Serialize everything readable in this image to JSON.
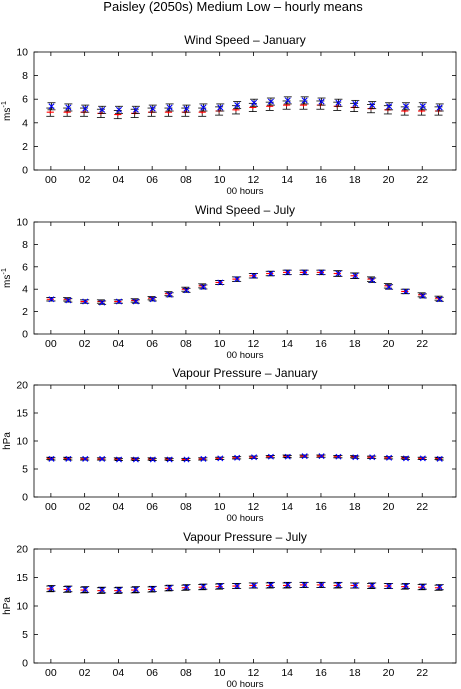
{
  "figure": {
    "title": "Paisley (2050s) Medium Low – hourly means"
  },
  "colors": {
    "series_red": "#ff0000",
    "series_blue": "#0000ff",
    "error_bar": "#000000",
    "axes": "#000000"
  },
  "chart_data": [
    {
      "type": "scatter",
      "title": "Wind Speed – January",
      "xlabel": "00 hours",
      "ylabel": "ms",
      "ylabel_exponent": "-1",
      "x": [
        0,
        1,
        2,
        3,
        4,
        5,
        6,
        7,
        8,
        9,
        10,
        11,
        12,
        13,
        14,
        15,
        16,
        17,
        18,
        19,
        20,
        21,
        22,
        23
      ],
      "xlim": [
        -1,
        24
      ],
      "ylim": [
        0,
        10
      ],
      "xticks": [
        "00",
        "02",
        "04",
        "06",
        "08",
        "10",
        "12",
        "14",
        "16",
        "18",
        "20",
        "22"
      ],
      "yticks": [
        "0",
        "2",
        "4",
        "6",
        "8",
        "10"
      ],
      "grid": false,
      "series": [
        {
          "color": "#ff0000",
          "marker": "cross",
          "values": [
            4.9,
            4.9,
            4.9,
            4.8,
            4.7,
            4.8,
            4.9,
            4.9,
            4.9,
            4.9,
            5.0,
            5.1,
            5.3,
            5.4,
            5.5,
            5.5,
            5.5,
            5.4,
            5.3,
            5.2,
            5.1,
            5.0,
            5.0,
            5.0
          ],
          "error": [
            0.35,
            0.35,
            0.35,
            0.35,
            0.35,
            0.35,
            0.35,
            0.35,
            0.35,
            0.35,
            0.35,
            0.35,
            0.35,
            0.35,
            0.35,
            0.35,
            0.35,
            0.35,
            0.35,
            0.35,
            0.35,
            0.35,
            0.35,
            0.35
          ]
        },
        {
          "color": "#0000ff",
          "marker": "x",
          "values": [
            5.4,
            5.3,
            5.2,
            5.1,
            5.1,
            5.1,
            5.2,
            5.3,
            5.2,
            5.3,
            5.3,
            5.5,
            5.7,
            5.8,
            5.9,
            5.9,
            5.8,
            5.7,
            5.6,
            5.5,
            5.4,
            5.4,
            5.4,
            5.3
          ],
          "error": [
            0.3,
            0.3,
            0.3,
            0.3,
            0.3,
            0.3,
            0.3,
            0.3,
            0.3,
            0.3,
            0.3,
            0.3,
            0.3,
            0.3,
            0.3,
            0.3,
            0.3,
            0.3,
            0.3,
            0.3,
            0.3,
            0.3,
            0.3,
            0.3
          ]
        }
      ]
    },
    {
      "type": "scatter",
      "title": "Wind Speed – July",
      "xlabel": "00 hours",
      "ylabel": "ms",
      "ylabel_exponent": "-1",
      "x": [
        0,
        1,
        2,
        3,
        4,
        5,
        6,
        7,
        8,
        9,
        10,
        11,
        12,
        13,
        14,
        15,
        16,
        17,
        18,
        19,
        20,
        21,
        22,
        23
      ],
      "xlim": [
        -1,
        24
      ],
      "ylim": [
        0,
        10
      ],
      "xticks": [
        "00",
        "02",
        "04",
        "06",
        "08",
        "10",
        "12",
        "14",
        "16",
        "18",
        "20",
        "22"
      ],
      "yticks": [
        "0",
        "2",
        "4",
        "6",
        "8",
        "10"
      ],
      "grid": false,
      "series": [
        {
          "color": "#ff0000",
          "marker": "cross",
          "values": [
            3.1,
            3.1,
            2.9,
            2.9,
            2.9,
            3.0,
            3.2,
            3.6,
            4.0,
            4.3,
            4.6,
            4.9,
            5.2,
            5.4,
            5.5,
            5.5,
            5.5,
            5.4,
            5.2,
            4.9,
            4.3,
            3.8,
            3.5,
            3.2
          ],
          "error": [
            0.15,
            0.15,
            0.15,
            0.15,
            0.15,
            0.15,
            0.15,
            0.18,
            0.18,
            0.18,
            0.18,
            0.2,
            0.2,
            0.2,
            0.2,
            0.2,
            0.2,
            0.25,
            0.25,
            0.2,
            0.2,
            0.2,
            0.18,
            0.18
          ]
        },
        {
          "color": "#0000ff",
          "marker": "x",
          "values": [
            3.1,
            3.0,
            2.9,
            2.8,
            2.9,
            2.9,
            3.1,
            3.5,
            3.9,
            4.2,
            4.6,
            4.9,
            5.2,
            5.4,
            5.5,
            5.5,
            5.5,
            5.4,
            5.2,
            4.8,
            4.2,
            3.8,
            3.4,
            3.1
          ],
          "error": [
            0.15,
            0.15,
            0.15,
            0.15,
            0.15,
            0.15,
            0.15,
            0.18,
            0.18,
            0.18,
            0.18,
            0.2,
            0.2,
            0.2,
            0.2,
            0.2,
            0.2,
            0.25,
            0.25,
            0.2,
            0.2,
            0.2,
            0.18,
            0.18
          ]
        }
      ]
    },
    {
      "type": "scatter",
      "title": "Vapour Pressure – January",
      "xlabel": "00 hours",
      "ylabel": "hPa",
      "x": [
        0,
        1,
        2,
        3,
        4,
        5,
        6,
        7,
        8,
        9,
        10,
        11,
        12,
        13,
        14,
        15,
        16,
        17,
        18,
        19,
        20,
        21,
        22,
        23
      ],
      "xlim": [
        -1,
        24
      ],
      "ylim": [
        0,
        20
      ],
      "xticks": [
        "00",
        "02",
        "04",
        "06",
        "08",
        "10",
        "12",
        "14",
        "16",
        "18",
        "20",
        "22"
      ],
      "yticks": [
        "0",
        "5",
        "10",
        "15",
        "20"
      ],
      "grid": false,
      "series": [
        {
          "color": "#ff0000",
          "marker": "cross",
          "values": [
            6.9,
            6.9,
            6.8,
            6.8,
            6.8,
            6.8,
            6.8,
            6.8,
            6.7,
            6.8,
            6.9,
            7.0,
            7.1,
            7.2,
            7.3,
            7.3,
            7.3,
            7.2,
            7.2,
            7.1,
            7.0,
            7.0,
            6.9,
            6.9
          ],
          "error": [
            0.2,
            0.2,
            0.2,
            0.2,
            0.2,
            0.2,
            0.2,
            0.2,
            0.2,
            0.2,
            0.2,
            0.2,
            0.2,
            0.2,
            0.2,
            0.2,
            0.2,
            0.2,
            0.2,
            0.2,
            0.2,
            0.2,
            0.2,
            0.2
          ]
        },
        {
          "color": "#0000ff",
          "marker": "x",
          "values": [
            6.8,
            6.8,
            6.8,
            6.8,
            6.7,
            6.7,
            6.7,
            6.7,
            6.7,
            6.8,
            6.9,
            7.0,
            7.1,
            7.2,
            7.2,
            7.3,
            7.3,
            7.2,
            7.1,
            7.1,
            7.0,
            6.9,
            6.9,
            6.8
          ],
          "error": [
            0.2,
            0.2,
            0.2,
            0.2,
            0.2,
            0.2,
            0.2,
            0.2,
            0.2,
            0.2,
            0.2,
            0.2,
            0.2,
            0.2,
            0.2,
            0.2,
            0.2,
            0.2,
            0.2,
            0.2,
            0.2,
            0.2,
            0.2,
            0.2
          ]
        }
      ]
    },
    {
      "type": "scatter",
      "title": "Vapour Pressure – July",
      "xlabel": "00 hours",
      "ylabel": "hPa",
      "x": [
        0,
        1,
        2,
        3,
        4,
        5,
        6,
        7,
        8,
        9,
        10,
        11,
        12,
        13,
        14,
        15,
        16,
        17,
        18,
        19,
        20,
        21,
        22,
        23
      ],
      "xlim": [
        -1,
        24
      ],
      "ylim": [
        0,
        20
      ],
      "xticks": [
        "00",
        "02",
        "04",
        "06",
        "08",
        "10",
        "12",
        "14",
        "16",
        "18",
        "20",
        "22"
      ],
      "yticks": [
        "0",
        "5",
        "10",
        "15",
        "20"
      ],
      "grid": false,
      "series": [
        {
          "color": "#ff0000",
          "marker": "cross",
          "values": [
            13.0,
            12.9,
            12.8,
            12.7,
            12.7,
            12.8,
            12.9,
            13.1,
            13.2,
            13.3,
            13.4,
            13.5,
            13.6,
            13.6,
            13.6,
            13.7,
            13.7,
            13.6,
            13.6,
            13.5,
            13.5,
            13.4,
            13.3,
            13.2
          ],
          "error": [
            0.5,
            0.5,
            0.5,
            0.5,
            0.5,
            0.5,
            0.45,
            0.45,
            0.45,
            0.45,
            0.45,
            0.45,
            0.45,
            0.45,
            0.45,
            0.45,
            0.45,
            0.45,
            0.45,
            0.45,
            0.45,
            0.45,
            0.45,
            0.45
          ]
        },
        {
          "color": "#0000ff",
          "marker": "x",
          "values": [
            13.1,
            13.0,
            12.9,
            12.8,
            12.8,
            12.9,
            13.0,
            13.2,
            13.3,
            13.4,
            13.5,
            13.5,
            13.6,
            13.7,
            13.7,
            13.7,
            13.7,
            13.7,
            13.6,
            13.6,
            13.5,
            13.5,
            13.4,
            13.3
          ],
          "error": [
            0.5,
            0.5,
            0.5,
            0.5,
            0.5,
            0.5,
            0.45,
            0.45,
            0.45,
            0.45,
            0.45,
            0.45,
            0.45,
            0.45,
            0.45,
            0.45,
            0.45,
            0.45,
            0.45,
            0.45,
            0.45,
            0.45,
            0.45,
            0.45
          ]
        }
      ]
    }
  ]
}
